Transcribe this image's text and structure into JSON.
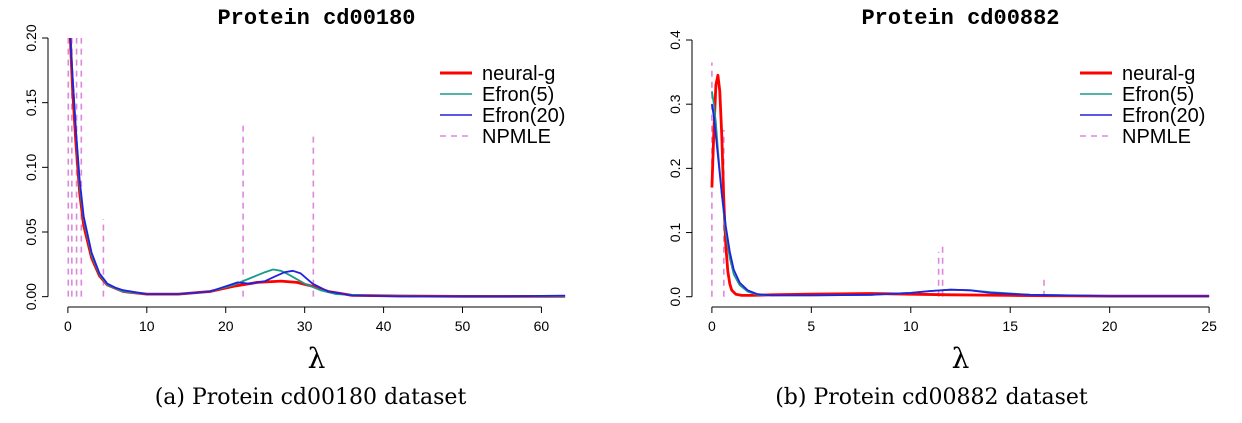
{
  "chart_data": [
    {
      "type": "line",
      "title": "Protein cd00180",
      "xlabel": "λ",
      "ylabel": "",
      "caption": "(a) Protein cd00180 dataset",
      "xlim": [
        0,
        63
      ],
      "ylim": [
        0,
        0.2
      ],
      "xticks": [
        0,
        10,
        20,
        30,
        40,
        50,
        60
      ],
      "yticks": [
        "0.00",
        "0.05",
        "0.10",
        "0.15",
        "0.20"
      ],
      "legend_position": "top-right",
      "series": [
        {
          "name": "neural-g",
          "color": "#ff0000",
          "style": "solid",
          "x": [
            0.3,
            0.6,
            1,
            1.5,
            2,
            3,
            4,
            5,
            7,
            10,
            14,
            18,
            21,
            24,
            27,
            29,
            31,
            33,
            36,
            42,
            50,
            63
          ],
          "y": [
            0.2,
            0.16,
            0.12,
            0.08,
            0.055,
            0.03,
            0.016,
            0.009,
            0.004,
            0.002,
            0.002,
            0.004,
            0.008,
            0.011,
            0.012,
            0.011,
            0.008,
            0.004,
            0.001,
            0.0005,
            0.0002,
            0.0002
          ]
        },
        {
          "name": "Efron(5)",
          "color": "#1a9a8a",
          "style": "solid",
          "x": [
            0.3,
            0.6,
            1,
            1.5,
            2,
            3,
            4,
            5,
            7,
            10,
            14,
            18,
            21,
            23,
            25,
            26,
            27,
            28,
            30,
            32,
            34,
            38,
            45,
            63
          ],
          "y": [
            0.2,
            0.17,
            0.13,
            0.085,
            0.06,
            0.032,
            0.017,
            0.009,
            0.004,
            0.002,
            0.002,
            0.004,
            0.009,
            0.014,
            0.019,
            0.021,
            0.02,
            0.017,
            0.01,
            0.005,
            0.002,
            0.0008,
            0.0003,
            0.0003
          ]
        },
        {
          "name": "Efron(20)",
          "color": "#2222dd",
          "style": "solid",
          "x": [
            0.3,
            0.6,
            1,
            1.5,
            2,
            3,
            4,
            5,
            6,
            7,
            10,
            14,
            18,
            20,
            21.5,
            23,
            25,
            26,
            27.5,
            28.5,
            29.5,
            31,
            33,
            36,
            42,
            55,
            63
          ],
          "y": [
            0.2,
            0.17,
            0.13,
            0.09,
            0.062,
            0.034,
            0.018,
            0.01,
            0.007,
            0.005,
            0.002,
            0.002,
            0.004,
            0.008,
            0.011,
            0.01,
            0.012,
            0.015,
            0.019,
            0.02,
            0.018,
            0.01,
            0.004,
            0.001,
            0.0003,
            0.0002,
            0.0008
          ]
        },
        {
          "name": "NPMLE",
          "color": "#dd88dd",
          "style": "dashed",
          "kind": "spikes",
          "x": [
            0.05,
            0.5,
            1.1,
            1.7,
            4.5,
            22.2,
            31.1
          ],
          "y": [
            0.2,
            0.2,
            0.2,
            0.2,
            0.06,
            0.135,
            0.125
          ]
        }
      ]
    },
    {
      "type": "line",
      "title": "Protein cd00882",
      "xlabel": "λ",
      "ylabel": "",
      "caption": "(b) Protein cd00882 dataset",
      "xlim": [
        0,
        25
      ],
      "ylim": [
        0,
        0.4
      ],
      "xticks": [
        0,
        5,
        10,
        15,
        20,
        25
      ],
      "yticks": [
        "0.0",
        "0.1",
        "0.2",
        "0.3",
        "0.4"
      ],
      "legend_position": "top-right",
      "series": [
        {
          "name": "neural-g",
          "color": "#ff0000",
          "style": "solid",
          "x": [
            0,
            0.1,
            0.2,
            0.3,
            0.4,
            0.5,
            0.6,
            0.7,
            0.8,
            0.9,
            1.0,
            1.2,
            1.5,
            2,
            3,
            5,
            8,
            10,
            12,
            15,
            20,
            25
          ],
          "y": [
            0.17,
            0.26,
            0.33,
            0.345,
            0.32,
            0.25,
            0.15,
            0.08,
            0.04,
            0.02,
            0.01,
            0.004,
            0.002,
            0.002,
            0.003,
            0.004,
            0.005,
            0.004,
            0.003,
            0.002,
            0.001,
            0.001
          ]
        },
        {
          "name": "Efron(5)",
          "color": "#1a9a8a",
          "style": "solid",
          "x": [
            0,
            0.1,
            0.2,
            0.3,
            0.5,
            0.7,
            0.9,
            1.1,
            1.4,
            1.8,
            2.3,
            3,
            5,
            8,
            10,
            11,
            12,
            13,
            14,
            16,
            20,
            25
          ],
          "y": [
            0.32,
            0.3,
            0.27,
            0.23,
            0.16,
            0.1,
            0.06,
            0.035,
            0.018,
            0.008,
            0.003,
            0.002,
            0.002,
            0.003,
            0.006,
            0.009,
            0.011,
            0.01,
            0.007,
            0.003,
            0.001,
            0.001
          ]
        },
        {
          "name": "Efron(20)",
          "color": "#2222dd",
          "style": "solid",
          "x": [
            0,
            0.1,
            0.2,
            0.3,
            0.5,
            0.7,
            0.9,
            1.1,
            1.4,
            1.8,
            2.3,
            3,
            5,
            8,
            10,
            11,
            12,
            13,
            14,
            16,
            20,
            25
          ],
          "y": [
            0.3,
            0.28,
            0.25,
            0.22,
            0.16,
            0.11,
            0.07,
            0.042,
            0.022,
            0.01,
            0.004,
            0.002,
            0.002,
            0.003,
            0.006,
            0.009,
            0.011,
            0.01,
            0.006,
            0.003,
            0.001,
            0.001
          ]
        },
        {
          "name": "NPMLE",
          "color": "#dd88dd",
          "style": "dashed",
          "kind": "spikes",
          "x": [
            0.0,
            0.6,
            11.4,
            11.6,
            16.7
          ],
          "y": [
            0.365,
            0.26,
            0.07,
            0.085,
            0.027
          ]
        }
      ]
    }
  ]
}
